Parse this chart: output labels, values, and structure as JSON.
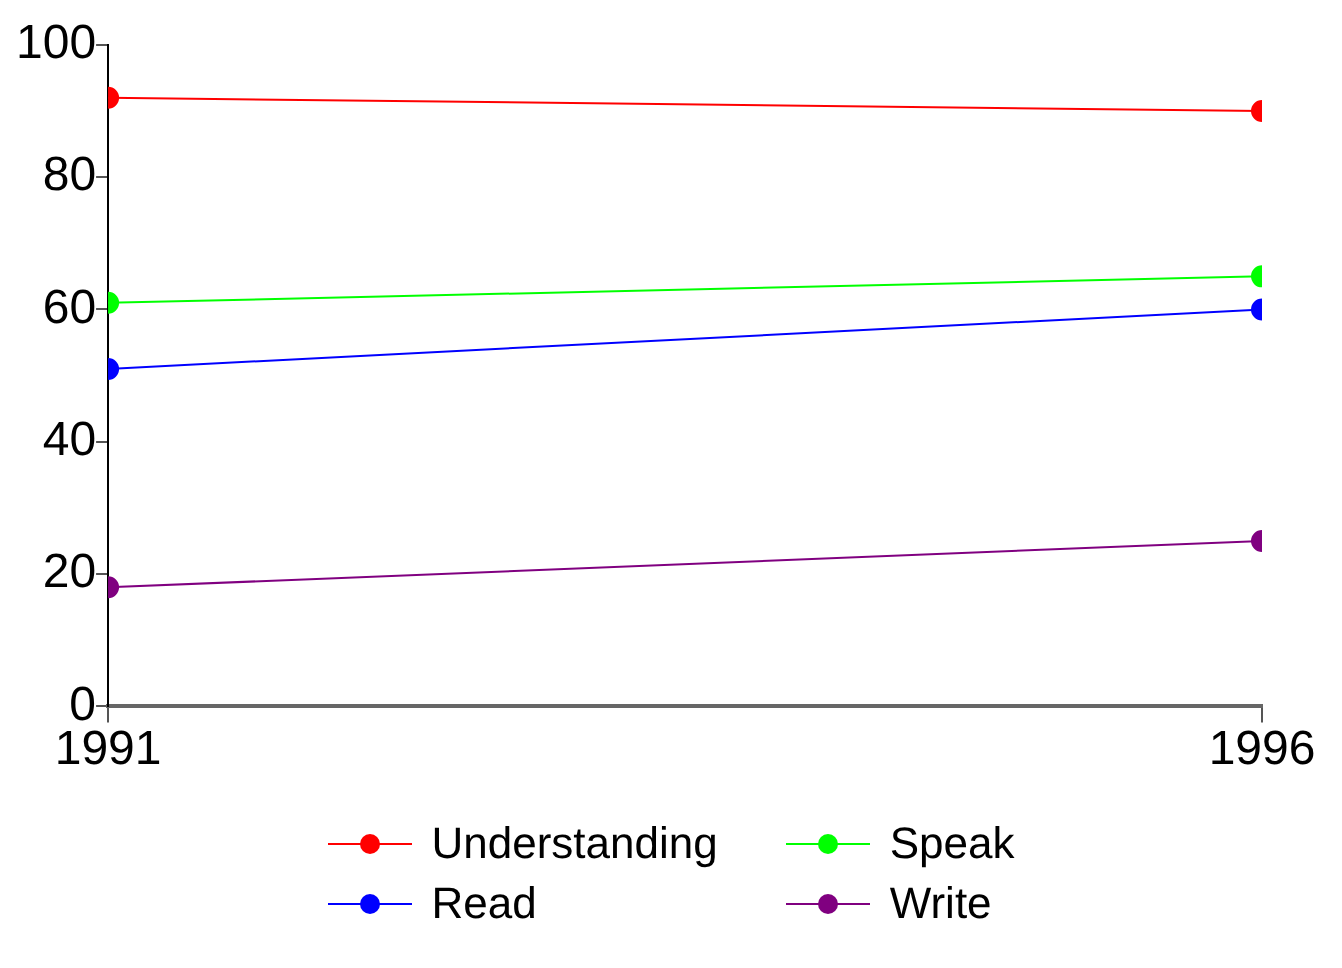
{
  "chart_data": {
    "type": "line",
    "x": [
      1991,
      1996
    ],
    "xlim": [
      1991,
      1996
    ],
    "xticks": [
      1991,
      1996
    ],
    "ylim": [
      0,
      100
    ],
    "yticks": [
      0,
      20,
      40,
      60,
      80,
      100
    ],
    "grid": false,
    "legend": "bottom",
    "marker": "circle",
    "line_style": "solid",
    "series": [
      {
        "name": "Understanding",
        "color": "#ff0000",
        "values": [
          92,
          90
        ]
      },
      {
        "name": "Speak",
        "color": "#00ff00",
        "values": [
          61,
          65
        ]
      },
      {
        "name": "Read",
        "color": "#0000ff",
        "values": [
          51,
          60
        ]
      },
      {
        "name": "Write",
        "color": "#800080",
        "values": [
          18,
          25
        ]
      }
    ]
  }
}
